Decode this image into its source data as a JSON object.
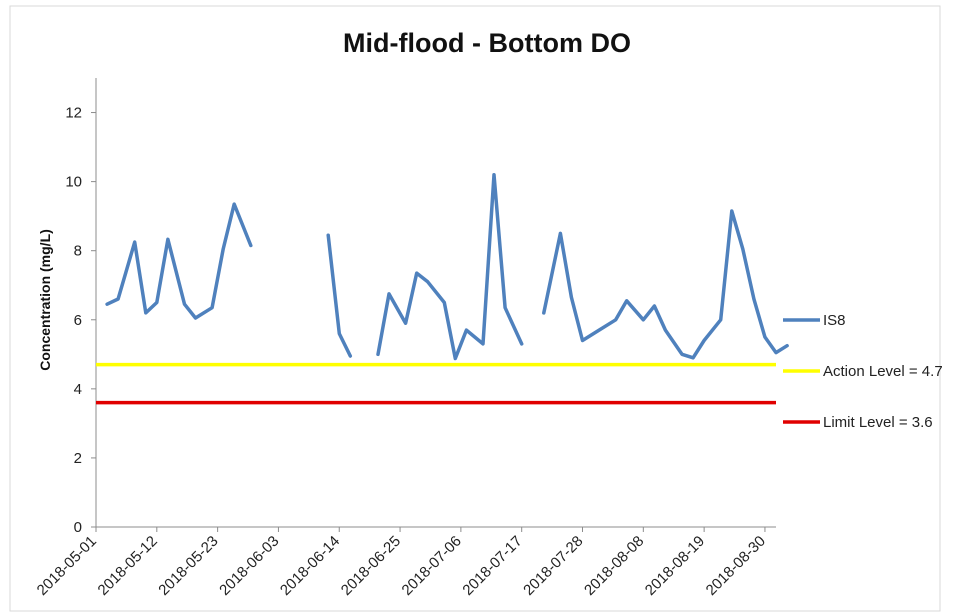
{
  "chart_data": {
    "type": "line",
    "title": "Mid-flood - Bottom DO",
    "xlabel": "",
    "ylabel": "Concentration (mg/L)",
    "ylim": [
      0,
      13
    ],
    "yticks": [
      0,
      2,
      4,
      6,
      8,
      10,
      12
    ],
    "xlim": [
      "2018-05-01",
      "2018-09-01"
    ],
    "xticks": [
      "2018-05-01",
      "2018-05-12",
      "2018-05-23",
      "2018-06-03",
      "2018-06-14",
      "2018-06-25",
      "2018-07-06",
      "2018-07-17",
      "2018-07-28",
      "2018-08-08",
      "2018-08-19",
      "2018-08-30"
    ],
    "grid": false,
    "legend_position": "right",
    "series": [
      {
        "name": "IS8",
        "color": "#4f81bd",
        "segments": [
          [
            [
              "2018-05-03",
              6.45
            ],
            [
              "2018-05-05",
              6.6
            ],
            [
              "2018-05-08",
              8.25
            ],
            [
              "2018-05-10",
              6.2
            ],
            [
              "2018-05-12",
              6.5
            ],
            [
              "2018-05-14",
              8.33
            ],
            [
              "2018-05-17",
              6.45
            ],
            [
              "2018-05-19",
              6.05
            ],
            [
              "2018-05-22",
              6.35
            ],
            [
              "2018-05-24",
              8.05
            ],
            [
              "2018-05-26",
              9.35
            ],
            [
              "2018-05-29",
              8.15
            ]
          ],
          [
            [
              "2018-06-12",
              8.45
            ],
            [
              "2018-06-14",
              5.6
            ],
            [
              "2018-06-16",
              4.95
            ]
          ],
          [
            [
              "2018-06-21",
              5.0
            ],
            [
              "2018-06-23",
              6.75
            ],
            [
              "2018-06-26",
              5.9
            ],
            [
              "2018-06-28",
              7.35
            ],
            [
              "2018-06-30",
              7.1
            ],
            [
              "2018-07-03",
              6.5
            ],
            [
              "2018-07-05",
              4.88
            ],
            [
              "2018-07-07",
              5.7
            ],
            [
              "2018-07-10",
              5.3
            ],
            [
              "2018-07-12",
              10.2
            ],
            [
              "2018-07-14",
              6.35
            ],
            [
              "2018-07-17",
              5.3
            ]
          ],
          [
            [
              "2018-07-21",
              6.2
            ],
            [
              "2018-07-24",
              8.5
            ],
            [
              "2018-07-26",
              6.65
            ],
            [
              "2018-07-28",
              5.4
            ],
            [
              "2018-07-31",
              5.7
            ],
            [
              "2018-08-03",
              6.0
            ],
            [
              "2018-08-05",
              6.55
            ],
            [
              "2018-08-08",
              6.0
            ],
            [
              "2018-08-10",
              6.4
            ],
            [
              "2018-08-12",
              5.7
            ],
            [
              "2018-08-15",
              5.0
            ],
            [
              "2018-08-17",
              4.9
            ],
            [
              "2018-08-19",
              5.4
            ],
            [
              "2018-08-22",
              6.0
            ],
            [
              "2018-08-24",
              9.15
            ],
            [
              "2018-08-26",
              8.05
            ],
            [
              "2018-08-28",
              6.6
            ],
            [
              "2018-08-30",
              5.5
            ],
            [
              "2018-09-01",
              5.05
            ],
            [
              "2018-09-03",
              5.25
            ]
          ]
        ]
      }
    ],
    "reference_lines": [
      {
        "name": "Action Level = 4.7",
        "value": 4.7,
        "color": "#ffff00"
      },
      {
        "name": "Limit Level = 3.6",
        "value": 3.6,
        "color": "#e00000"
      }
    ]
  }
}
